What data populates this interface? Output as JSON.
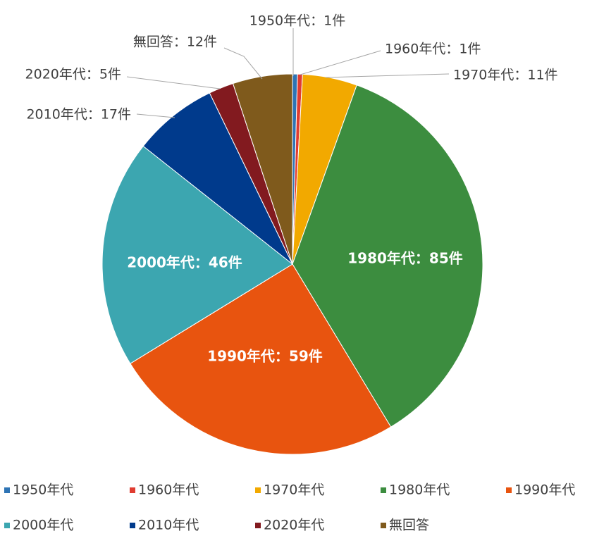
{
  "chart_data": {
    "type": "pie",
    "title": "",
    "categories": [
      "1950年代",
      "1960年代",
      "1970年代",
      "1980年代",
      "1990年代",
      "2000年代",
      "2010年代",
      "2020年代",
      "無回答"
    ],
    "values": [
      1,
      1,
      11,
      85,
      59,
      46,
      17,
      5,
      12
    ],
    "colors": [
      "#2e74b5",
      "#e03c31",
      "#f2a900",
      "#3c8d3f",
      "#e8540f",
      "#3ca6b0",
      "#003a8c",
      "#821a1f",
      "#7f5a1c"
    ],
    "data_labels": [
      "1950年代：1件",
      "1960年代：1件",
      "1970年代：11件",
      "1980年代：85件",
      "1990年代：59件",
      "2000年代：46件",
      "2010年代：17件",
      "2020年代：5件",
      "無回答：12件"
    ],
    "legend": {
      "position": "bottom",
      "entries": [
        "1950年代",
        "1960年代",
        "1970年代",
        "1980年代",
        "1990年代",
        "2000年代",
        "2010年代",
        "2020年代",
        "無回答"
      ]
    },
    "start": "top",
    "direction": "clockwise"
  }
}
